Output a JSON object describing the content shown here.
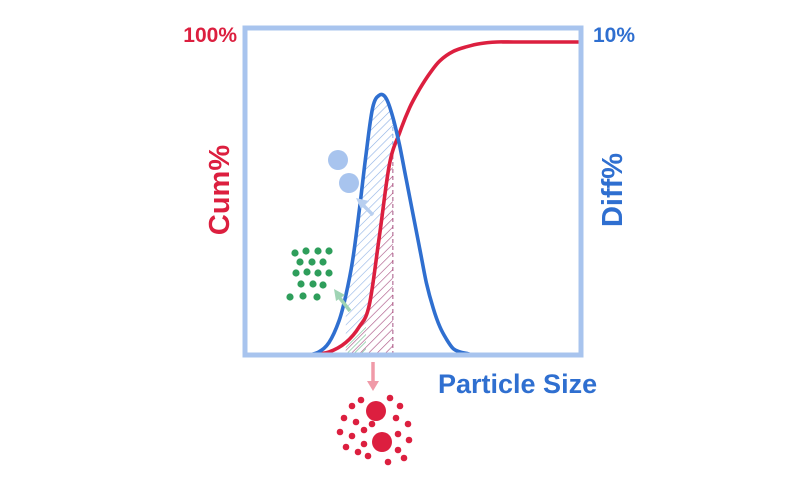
{
  "chart_data": {
    "type": "line",
    "title": "",
    "xlabel": "Particle Size",
    "ylabel_left": "Cum%",
    "ylabel_right": "Diff%",
    "ytick_left_top": "100%",
    "ytick_right_top": "10%",
    "x_ticks": false,
    "grid": false,
    "xlim": [
      0,
      100
    ],
    "ylim_left": [
      0,
      100
    ],
    "ylim_right": [
      0,
      10
    ],
    "series": [
      {
        "axis": "right",
        "color": "#2f6fd0",
        "x": [
          19,
          22,
          25,
          28,
          30,
          32,
          34,
          36,
          38,
          40,
          42,
          44,
          46,
          48,
          50,
          52,
          54,
          56,
          58,
          60,
          62,
          64,
          66,
          68,
          71
        ],
        "values": [
          0.0,
          0.1,
          0.4,
          1.1,
          1.9,
          3.0,
          4.6,
          6.4,
          7.9,
          8.3,
          8.2,
          7.6,
          6.7,
          5.6,
          4.5,
          3.4,
          2.3,
          1.5,
          0.9,
          0.5,
          0.2,
          0.1,
          0.05,
          0.0,
          0.0
        ]
      },
      {
        "axis": "left",
        "color": "#dc1f3f",
        "x": [
          19,
          25,
          30,
          34,
          37,
          40,
          43,
          46,
          49,
          52,
          55,
          58,
          62,
          66,
          70,
          75,
          80,
          100
        ],
        "values": [
          0,
          1,
          4,
          9,
          16,
          38,
          61,
          71,
          79,
          85,
          90,
          94,
          97,
          98.5,
          99.5,
          100,
          100,
          100
        ]
      }
    ],
    "shaded_regions": [
      {
        "x_from": 30,
        "x_to": 44,
        "color": "#2f6fd0"
      },
      {
        "x_from": 30,
        "x_to": 44,
        "color": "#dc1f3f"
      },
      {
        "x_from": 30,
        "x_to": 36,
        "color": "#2e9e5b"
      }
    ],
    "annotations": [
      {
        "kind": "large-particles",
        "color": "#a8c4ee"
      },
      {
        "kind": "fine-particles",
        "color": "#2e9e5b"
      },
      {
        "kind": "agglomerate",
        "color": "#dc1f3f"
      }
    ]
  },
  "colors": {
    "frame": "#a8c4ee",
    "cum": "#dc1f3f",
    "diff": "#2f6fd0",
    "green": "#2e9e5b",
    "arrow_light_blue": "#b8cff0",
    "arrow_light_green": "#9fd4b4",
    "arrow_pink": "#f09aa8"
  }
}
